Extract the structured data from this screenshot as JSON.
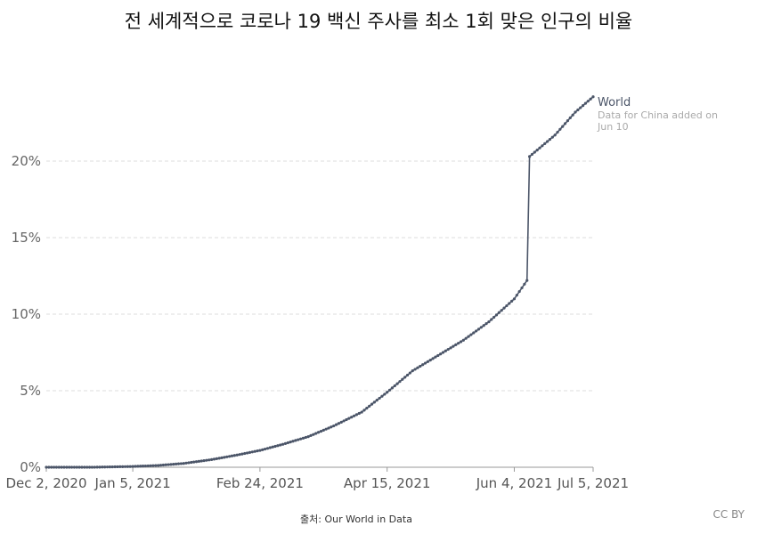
{
  "title": "전 세계적으로 코로나 19 백신 주사를 최소 1회 맞은 인구의 비율",
  "source": "출처: Our World in Data",
  "license": "CC BY",
  "colors": {
    "series": "#4b5568",
    "grid": "#dddddd",
    "note": "#aaaaaa"
  },
  "chart_data": {
    "type": "line",
    "title": "전 세계적으로 코로나 19 백신 주사를 최소 1회 맞은 인구의 비율",
    "xlabel": "",
    "ylabel": "",
    "x_range": [
      "2020-12-02",
      "2021-07-05"
    ],
    "ylim": [
      0,
      25
    ],
    "y_ticks": [
      0,
      5,
      10,
      15,
      20
    ],
    "y_tick_labels": [
      "0%",
      "5%",
      "10%",
      "15%",
      "20%"
    ],
    "x_ticks": [
      "2020-12-02",
      "2021-01-05",
      "2021-02-24",
      "2021-04-15",
      "2021-06-04",
      "2021-07-05"
    ],
    "x_tick_labels": [
      "Dec 2, 2020",
      "Jan 5, 2021",
      "Feb 24, 2021",
      "Apr 15, 2021",
      "Jun 4, 2021",
      "Jul 5, 2021"
    ],
    "grid": true,
    "legend_position": "right",
    "series": [
      {
        "name": "World",
        "annotation": "Data for China added on Jun 10",
        "points": [
          [
            "2020-12-02",
            0.0
          ],
          [
            "2020-12-20",
            0.0
          ],
          [
            "2021-01-05",
            0.05
          ],
          [
            "2021-01-15",
            0.12
          ],
          [
            "2021-01-25",
            0.25
          ],
          [
            "2021-02-05",
            0.5
          ],
          [
            "2021-02-15",
            0.8
          ],
          [
            "2021-02-24",
            1.1
          ],
          [
            "2021-03-05",
            1.5
          ],
          [
            "2021-03-15",
            2.0
          ],
          [
            "2021-03-25",
            2.7
          ],
          [
            "2021-04-05",
            3.6
          ],
          [
            "2021-04-15",
            4.9
          ],
          [
            "2021-04-25",
            6.3
          ],
          [
            "2021-05-05",
            7.3
          ],
          [
            "2021-05-15",
            8.3
          ],
          [
            "2021-05-25",
            9.5
          ],
          [
            "2021-06-04",
            11.0
          ],
          [
            "2021-06-09",
            12.2
          ],
          [
            "2021-06-10",
            20.3
          ],
          [
            "2021-06-20",
            21.7
          ],
          [
            "2021-06-28",
            23.2
          ],
          [
            "2021-07-05",
            24.2
          ]
        ]
      }
    ]
  }
}
